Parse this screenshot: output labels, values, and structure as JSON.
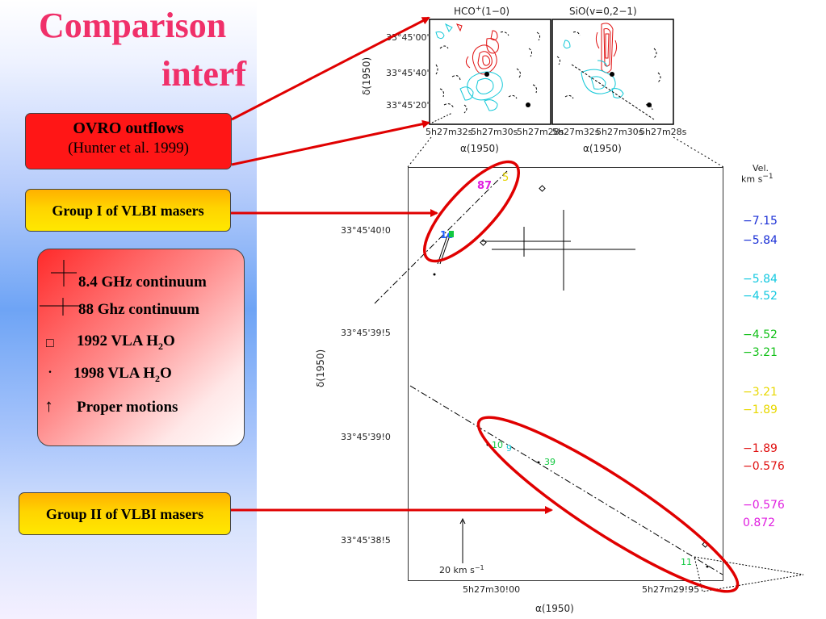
{
  "slide": {
    "title_line1": "Comparison",
    "title_line2": "interf"
  },
  "boxes": {
    "ovro_title": "OVRO outflows",
    "ovro_ref": "(Hunter et al. 1999)",
    "group1": "Group I of VLBI masers",
    "group2": "Group II of VLBI masers"
  },
  "legend": {
    "items": [
      {
        "label": "8.4 GHz continuum",
        "symbol": "large-cross"
      },
      {
        "label": "88 Ghz continuum",
        "symbol": "small-cross"
      },
      {
        "label": "1992 VLA H",
        "sub": "2",
        "suffix": "O",
        "symbol": "□"
      },
      {
        "label": "1998 VLA H",
        "sub": "2",
        "suffix": "O",
        "symbol": "."
      },
      {
        "label": "Proper motions",
        "symbol": "↑"
      }
    ]
  },
  "top_maps": {
    "left_title": "HCO",
    "left_title_sup": "+",
    "left_title_rest": "(1−0)",
    "right_title": "SiO(v=0,2−1)",
    "ylabel": "δ(1950)",
    "yticks": [
      "33°45'00\"",
      "33°45'40\"",
      "33°45'20\""
    ],
    "xticks_left": [
      "5h27m32s",
      "5h27m30s",
      "5h27m28s"
    ],
    "xticks_right": [
      "5h27m32s",
      "5h27m30s",
      "5h27m28s"
    ],
    "xlabel_left": "α(1950)",
    "xlabel_right": "α(1950)",
    "colors": {
      "hco": "#e01010",
      "sio": "#12c8d8"
    }
  },
  "main_map": {
    "ylabel": "δ(1950)",
    "xlabel": "α(1950)",
    "yticks": [
      "33°45'40!0",
      "33°45'39!5",
      "33°45'39!0",
      "33°45'38!5"
    ],
    "xticks": [
      "5h27m30!00",
      "5h27m29!95"
    ],
    "scale_bar_label": "20 km s",
    "scale_bar_sup": "−1",
    "maser_labels": [
      {
        "text": "87",
        "color": "#e020e0"
      },
      {
        "text": "5",
        "color": "#e6d400"
      },
      {
        "text": "1e",
        "color": "#2060ff"
      },
      {
        "text": "10",
        "color": "#12c840"
      },
      {
        "text": "9",
        "color": "#12c8d8"
      },
      {
        "text": "39",
        "color": "#12c840"
      },
      {
        "text": "11",
        "color": "#12c840"
      }
    ]
  },
  "velocity_legend": {
    "header": "Vel.",
    "unit": "km s",
    "unit_sup": "−1",
    "entries": [
      {
        "value": "−7.15",
        "color": "#1a2fd6"
      },
      {
        "value": "−5.84",
        "color": "#1a2fd6"
      },
      {
        "value": "−5.84",
        "color": "#12c8e0"
      },
      {
        "value": "−4.52",
        "color": "#12c8e0"
      },
      {
        "value": "−4.52",
        "color": "#12c018"
      },
      {
        "value": "−3.21",
        "color": "#12c018"
      },
      {
        "value": "−3.21",
        "color": "#e8d800"
      },
      {
        "value": "−1.89",
        "color": "#e8d800"
      },
      {
        "value": "−1.89",
        "color": "#e01010"
      },
      {
        "value": "−0.576",
        "color": "#e01010"
      },
      {
        "value": "−0.576",
        "color": "#e020e0"
      },
      {
        "value": "0.872",
        "color": "#e020e0"
      }
    ]
  },
  "colors": {
    "title": "#f0306a",
    "arrow": "#e00000",
    "ellipse": "#e00000"
  }
}
